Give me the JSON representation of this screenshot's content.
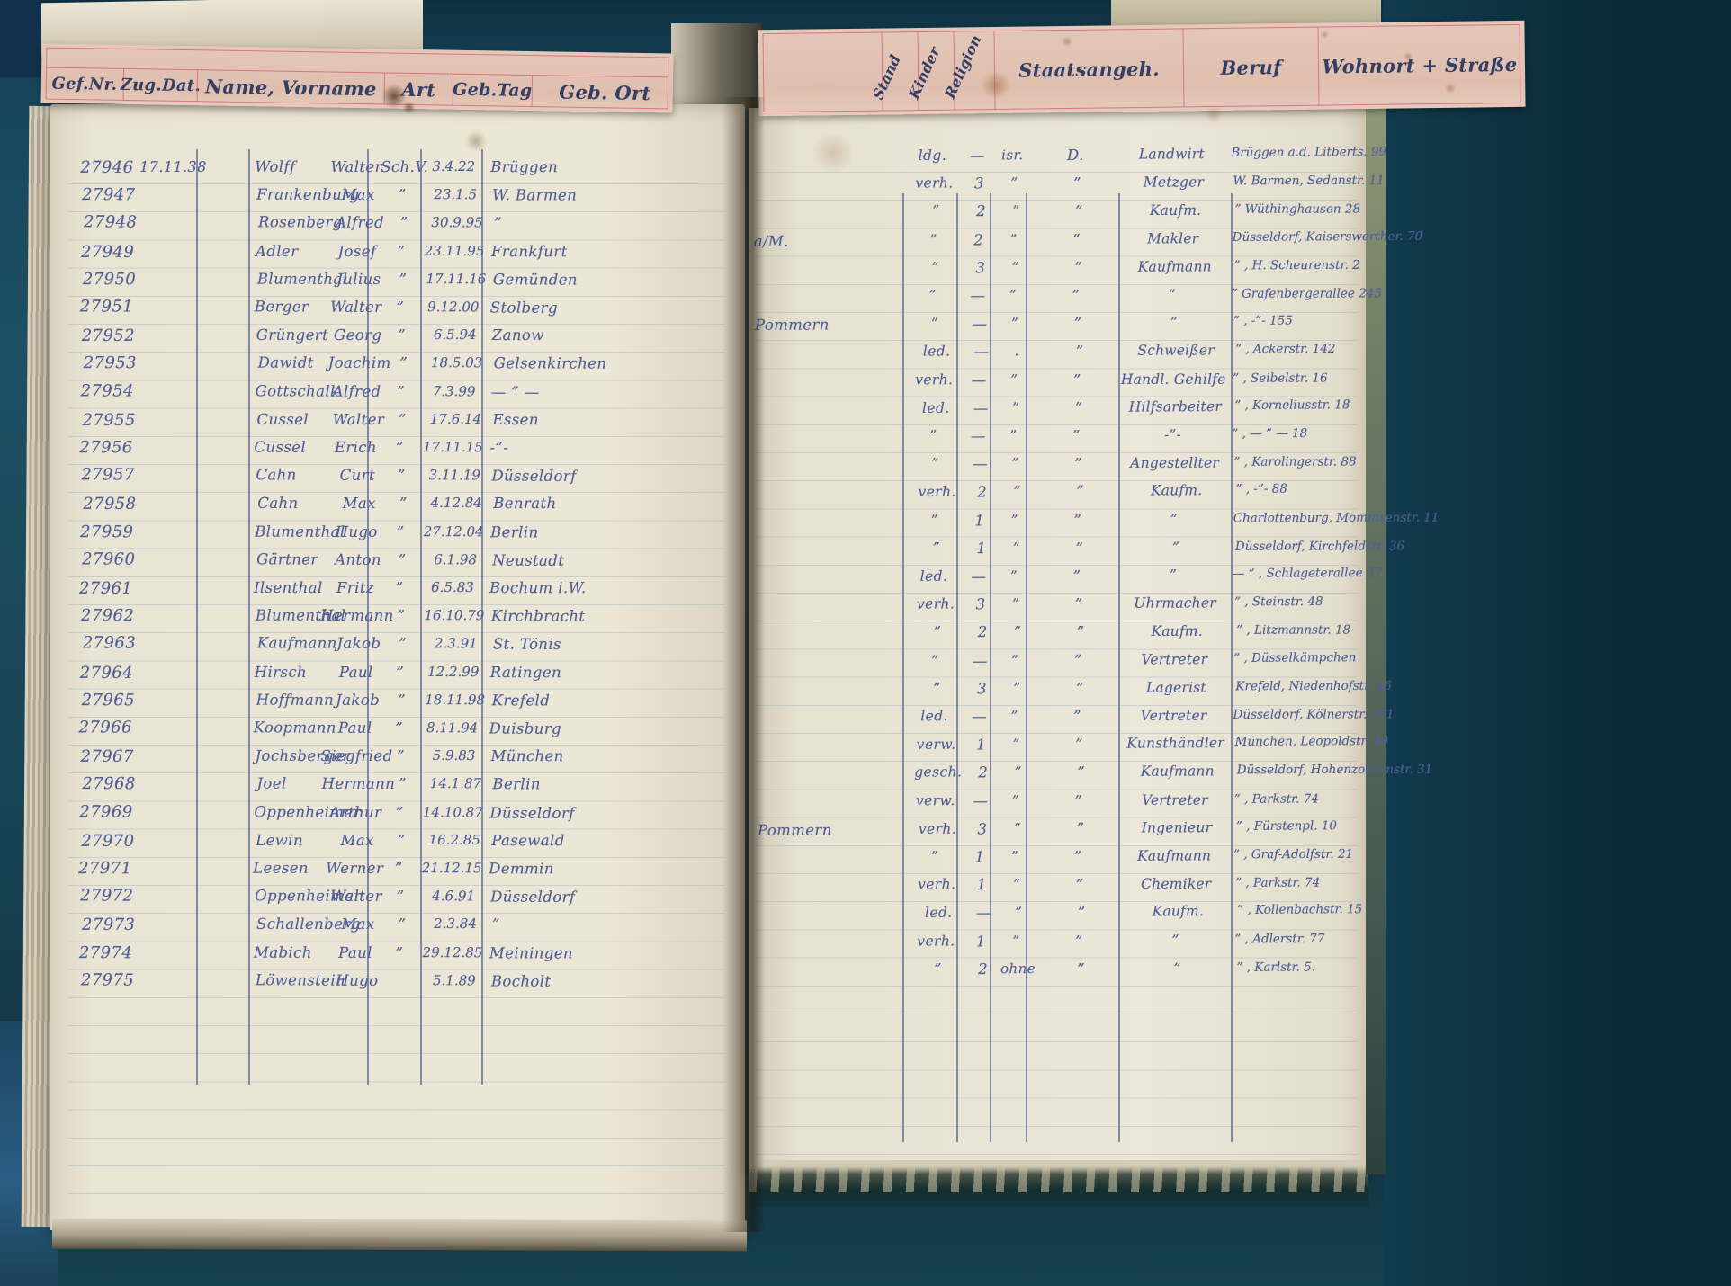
{
  "colors": {
    "background": "#16404f",
    "page": "#ebe5d5",
    "card": "#e2c1b2",
    "ink": "#4f5f96",
    "header_ink": "#333f63",
    "rule_red": "#d4687a"
  },
  "left_header": {
    "columns": [
      "Gef.Nr.",
      "Zug.Dat.",
      "Name, Vorname",
      "Art",
      "Geb.Tag",
      "Geb. Ort"
    ]
  },
  "right_header": {
    "columns": [
      "Stand",
      "Kinder",
      "Religion",
      "Staatsangeh.",
      "Beruf",
      "Wohnort + Straße"
    ]
  },
  "ledger": {
    "rows": [
      {
        "gef_nr": "27946",
        "zug_dat": "17.11.38",
        "name": "Wolff",
        "vorname": "Walter",
        "art": "Sch.V.",
        "geb_tag": "3.4.22",
        "geb_ort": "Brüggen",
        "geb_ort_cont": "",
        "stand": "ldg.",
        "kinder": "—",
        "religion": "isr.",
        "staatsangeh": "D.",
        "beruf": "Landwirt",
        "wohnort": "Brüggen a.d. Litberts. 99"
      },
      {
        "gef_nr": "27947",
        "zug_dat": "",
        "name": "Frankenburg",
        "vorname": "Max",
        "art": "”",
        "geb_tag": "23.1.5",
        "geb_ort": "W. Barmen",
        "geb_ort_cont": "",
        "stand": "verh.",
        "kinder": "3",
        "religion": "”",
        "staatsangeh": "”",
        "beruf": "Metzger",
        "wohnort": "W. Barmen, Sedanstr. 11"
      },
      {
        "gef_nr": "27948",
        "zug_dat": "",
        "name": "Rosenberg",
        "vorname": "Alfred",
        "art": "”",
        "geb_tag": "30.9.95",
        "geb_ort": "”",
        "geb_ort_cont": "",
        "stand": "”",
        "kinder": "2",
        "religion": "”",
        "staatsangeh": "”",
        "beruf": "Kaufm.",
        "wohnort": "”   Wüthinghausen 28"
      },
      {
        "gef_nr": "27949",
        "zug_dat": "",
        "name": "Adler",
        "vorname": "Josef",
        "art": "”",
        "geb_tag": "23.11.95",
        "geb_ort": "Frankfurt",
        "geb_ort_cont": "a/M.",
        "stand": "”",
        "kinder": "2",
        "religion": "”",
        "staatsangeh": "”",
        "beruf": "Makler",
        "wohnort": "Düsseldorf, Kaiserswerther. 70"
      },
      {
        "gef_nr": "27950",
        "zug_dat": "",
        "name": "Blumenthal",
        "vorname": "Julius",
        "art": "”",
        "geb_tag": "17.11.16",
        "geb_ort": "Gemünden",
        "geb_ort_cont": "",
        "stand": "”",
        "kinder": "3",
        "religion": "”",
        "staatsangeh": "”",
        "beruf": "Kaufmann",
        "wohnort": "” , H. Scheurenstr. 2"
      },
      {
        "gef_nr": "27951",
        "zug_dat": "",
        "name": "Berger",
        "vorname": "Walter",
        "art": "”",
        "geb_tag": "9.12.00",
        "geb_ort": "Stolberg",
        "geb_ort_cont": "",
        "stand": "”",
        "kinder": "—",
        "religion": "”",
        "staatsangeh": "”",
        "beruf": "”",
        "wohnort": "”   Grafenbergerallee 245"
      },
      {
        "gef_nr": "27952",
        "zug_dat": "",
        "name": "Grüngert",
        "vorname": "Georg",
        "art": "”",
        "geb_tag": "6.5.94",
        "geb_ort": "Zanow",
        "geb_ort_cont": "Pommern",
        "stand": "”",
        "kinder": "—",
        "religion": "”",
        "staatsangeh": "”",
        "beruf": "”",
        "wohnort": "” ,  -”-  155"
      },
      {
        "gef_nr": "27953",
        "zug_dat": "",
        "name": "Dawidt",
        "vorname": "Joachim",
        "art": "”",
        "geb_tag": "18.5.03",
        "geb_ort": "Gelsenkirchen",
        "geb_ort_cont": "",
        "stand": "led.",
        "kinder": "—",
        "religion": ".",
        "staatsangeh": "”",
        "beruf": "Schweißer",
        "wohnort": "” , Ackerstr. 142"
      },
      {
        "gef_nr": "27954",
        "zug_dat": "",
        "name": "Gottschalk",
        "vorname": "Alfred",
        "art": "”",
        "geb_tag": "7.3.99",
        "geb_ort": "— ” —",
        "geb_ort_cont": "",
        "stand": "verh.",
        "kinder": "—",
        "religion": "”",
        "staatsangeh": "”",
        "beruf": "Handl. Gehilfe",
        "wohnort": "” , Seibelstr. 16"
      },
      {
        "gef_nr": "27955",
        "zug_dat": "",
        "name": "Cussel",
        "vorname": "Walter",
        "art": "”",
        "geb_tag": "17.6.14",
        "geb_ort": "Essen",
        "geb_ort_cont": "",
        "stand": "led.",
        "kinder": "—",
        "religion": "”",
        "staatsangeh": "”",
        "beruf": "Hilfsarbeiter",
        "wohnort": "” , Korneliusstr. 18"
      },
      {
        "gef_nr": "27956",
        "zug_dat": "",
        "name": "Cussel",
        "vorname": "Erich",
        "art": "”",
        "geb_tag": "17.11.15",
        "geb_ort": "-”-",
        "geb_ort_cont": "",
        "stand": "”",
        "kinder": "—",
        "religion": "”",
        "staatsangeh": "”",
        "beruf": "-”-",
        "wohnort": "” ,  — ” —  18"
      },
      {
        "gef_nr": "27957",
        "zug_dat": "",
        "name": "Cahn",
        "vorname": "Curt",
        "art": "”",
        "geb_tag": "3.11.19",
        "geb_ort": "Düsseldorf",
        "geb_ort_cont": "",
        "stand": "”",
        "kinder": "—",
        "religion": "”",
        "staatsangeh": "”",
        "beruf": "Angestellter",
        "wohnort": "” , Karolingerstr. 88"
      },
      {
        "gef_nr": "27958",
        "zug_dat": "",
        "name": "Cahn",
        "vorname": "Max",
        "art": "”",
        "geb_tag": "4.12.84",
        "geb_ort": "Benrath",
        "geb_ort_cont": "",
        "stand": "verh.",
        "kinder": "2",
        "religion": "”",
        "staatsangeh": "”",
        "beruf": "Kaufm.",
        "wohnort": "” ,  -”-  88"
      },
      {
        "gef_nr": "27959",
        "zug_dat": "",
        "name": "Blumenthal",
        "vorname": "Hugo",
        "art": "”",
        "geb_tag": "27.12.04",
        "geb_ort": "Berlin",
        "geb_ort_cont": "",
        "stand": "”",
        "kinder": "1",
        "religion": "”",
        "staatsangeh": "”",
        "beruf": "”",
        "wohnort": "Charlottenburg, Mommsenstr. 11"
      },
      {
        "gef_nr": "27960",
        "zug_dat": "",
        "name": "Gärtner",
        "vorname": "Anton",
        "art": "”",
        "geb_tag": "6.1.98",
        "geb_ort": "Neustadt",
        "geb_ort_cont": "",
        "stand": "”",
        "kinder": "1",
        "religion": "”",
        "staatsangeh": "”",
        "beruf": "”",
        "wohnort": "Düsseldorf, Kirchfeldstr. 36"
      },
      {
        "gef_nr": "27961",
        "zug_dat": "",
        "name": "Ilsenthal",
        "vorname": "Fritz",
        "art": "”",
        "geb_tag": "6.5.83",
        "geb_ort": "Bochum i.W.",
        "geb_ort_cont": "",
        "stand": "led.",
        "kinder": "—",
        "religion": "”",
        "staatsangeh": "”",
        "beruf": "”",
        "wohnort": "— ” , Schlageterallee 37"
      },
      {
        "gef_nr": "27962",
        "zug_dat": "",
        "name": "Blumenthal",
        "vorname": "Hermann",
        "art": "”",
        "geb_tag": "16.10.79",
        "geb_ort": "Kirchbracht",
        "geb_ort_cont": "",
        "stand": "verh.",
        "kinder": "3",
        "religion": "”",
        "staatsangeh": "”",
        "beruf": "Uhrmacher",
        "wohnort": "” , Steinstr. 48"
      },
      {
        "gef_nr": "27963",
        "zug_dat": "",
        "name": "Kaufmann",
        "vorname": "Jakob",
        "art": "”",
        "geb_tag": "2.3.91",
        "geb_ort": "St. Tönis",
        "geb_ort_cont": "",
        "stand": "”",
        "kinder": "2",
        "religion": "”",
        "staatsangeh": "”",
        "beruf": "Kaufm.",
        "wohnort": "” , Litzmannstr. 18"
      },
      {
        "gef_nr": "27964",
        "zug_dat": "",
        "name": "Hirsch",
        "vorname": "Paul",
        "art": "”",
        "geb_tag": "12.2.99",
        "geb_ort": "Ratingen",
        "geb_ort_cont": "",
        "stand": "”",
        "kinder": "—",
        "religion": "”",
        "staatsangeh": "”",
        "beruf": "Vertreter",
        "wohnort": "” , Düsselkämpchen"
      },
      {
        "gef_nr": "27965",
        "zug_dat": "",
        "name": "Hoffmann",
        "vorname": "Jakob",
        "art": "”",
        "geb_tag": "18.11.98",
        "geb_ort": "Krefeld",
        "geb_ort_cont": "",
        "stand": "”",
        "kinder": "3",
        "religion": "”",
        "staatsangeh": "”",
        "beruf": "Lagerist",
        "wohnort": "Krefeld, Niedenhofstr. 46"
      },
      {
        "gef_nr": "27966",
        "zug_dat": "",
        "name": "Koopmann",
        "vorname": "Paul",
        "art": "”",
        "geb_tag": "8.11.94",
        "geb_ort": "Duisburg",
        "geb_ort_cont": "",
        "stand": "led.",
        "kinder": "—",
        "religion": "”",
        "staatsangeh": "”",
        "beruf": "Vertreter",
        "wohnort": "Düsseldorf, Kölnerstr. 161"
      },
      {
        "gef_nr": "27967",
        "zug_dat": "",
        "name": "Jochsberger",
        "vorname": "Siegfried",
        "art": "”",
        "geb_tag": "5.9.83",
        "geb_ort": "München",
        "geb_ort_cont": "",
        "stand": "verw.",
        "kinder": "1",
        "religion": "”",
        "staatsangeh": "”",
        "beruf": "Kunsthändler",
        "wohnort": "München, Leopoldstr. 40"
      },
      {
        "gef_nr": "27968",
        "zug_dat": "",
        "name": "Joel",
        "vorname": "Hermann",
        "art": "”",
        "geb_tag": "14.1.87",
        "geb_ort": "Berlin",
        "geb_ort_cont": "",
        "stand": "gesch.",
        "kinder": "2",
        "religion": "”",
        "staatsangeh": "”",
        "beruf": "Kaufmann",
        "wohnort": "Düsseldorf, Hohenzollernstr. 31"
      },
      {
        "gef_nr": "27969",
        "zug_dat": "",
        "name": "Oppenheimer",
        "vorname": "Arthur",
        "art": "”",
        "geb_tag": "14.10.87",
        "geb_ort": "Düsseldorf",
        "geb_ort_cont": "",
        "stand": "verw.",
        "kinder": "—",
        "religion": "”",
        "staatsangeh": "”",
        "beruf": "Vertreter",
        "wohnort": "” , Parkstr. 74"
      },
      {
        "gef_nr": "27970",
        "zug_dat": "",
        "name": "Lewin",
        "vorname": "Max",
        "art": "”",
        "geb_tag": "16.2.85",
        "geb_ort": "Pasewald",
        "geb_ort_cont": "Pommern",
        "stand": "verh.",
        "kinder": "3",
        "religion": "”",
        "staatsangeh": "”",
        "beruf": "Ingenieur",
        "wohnort": "” , Fürstenpl. 10"
      },
      {
        "gef_nr": "27971",
        "zug_dat": "",
        "name": "Leesen",
        "vorname": "Werner",
        "art": "”",
        "geb_tag": "21.12.15",
        "geb_ort": "Demmin",
        "geb_ort_cont": "",
        "stand": "”",
        "kinder": "1",
        "religion": "”",
        "staatsangeh": "”",
        "beruf": "Kaufmann",
        "wohnort": "” , Graf-Adolfstr. 21"
      },
      {
        "gef_nr": "27972",
        "zug_dat": "",
        "name": "Oppenheimer",
        "vorname": "Walter",
        "art": "”",
        "geb_tag": "4.6.91",
        "geb_ort": "Düsseldorf",
        "geb_ort_cont": "",
        "stand": "verh.",
        "kinder": "1",
        "religion": "”",
        "staatsangeh": "”",
        "beruf": "Chemiker",
        "wohnort": "” , Parkstr. 74"
      },
      {
        "gef_nr": "27973",
        "zug_dat": "",
        "name": "Schallenberg",
        "vorname": "Max",
        "art": "”",
        "geb_tag": "2.3.84",
        "geb_ort": "”",
        "geb_ort_cont": "",
        "stand": "led.",
        "kinder": "—",
        "religion": "”",
        "staatsangeh": "”",
        "beruf": "Kaufm.",
        "wohnort": "” , Kollenbachstr. 15"
      },
      {
        "gef_nr": "27974",
        "zug_dat": "",
        "name": "Mabich",
        "vorname": "Paul",
        "art": "”",
        "geb_tag": "29.12.85",
        "geb_ort": "Meiningen",
        "geb_ort_cont": "",
        "stand": "verh.",
        "kinder": "1",
        "religion": "”",
        "staatsangeh": "”",
        "beruf": "”",
        "wohnort": "” , Adlerstr. 77"
      },
      {
        "gef_nr": "27975",
        "zug_dat": "",
        "name": "Löwenstein",
        "vorname": "Hugo",
        "art": "",
        "geb_tag": "5.1.89",
        "geb_ort": "Bocholt",
        "geb_ort_cont": "",
        "stand": "”",
        "kinder": "2",
        "religion": "ohne",
        "staatsangeh": "”",
        "beruf": "”",
        "wohnort": "” , Karlstr. 5."
      }
    ]
  }
}
